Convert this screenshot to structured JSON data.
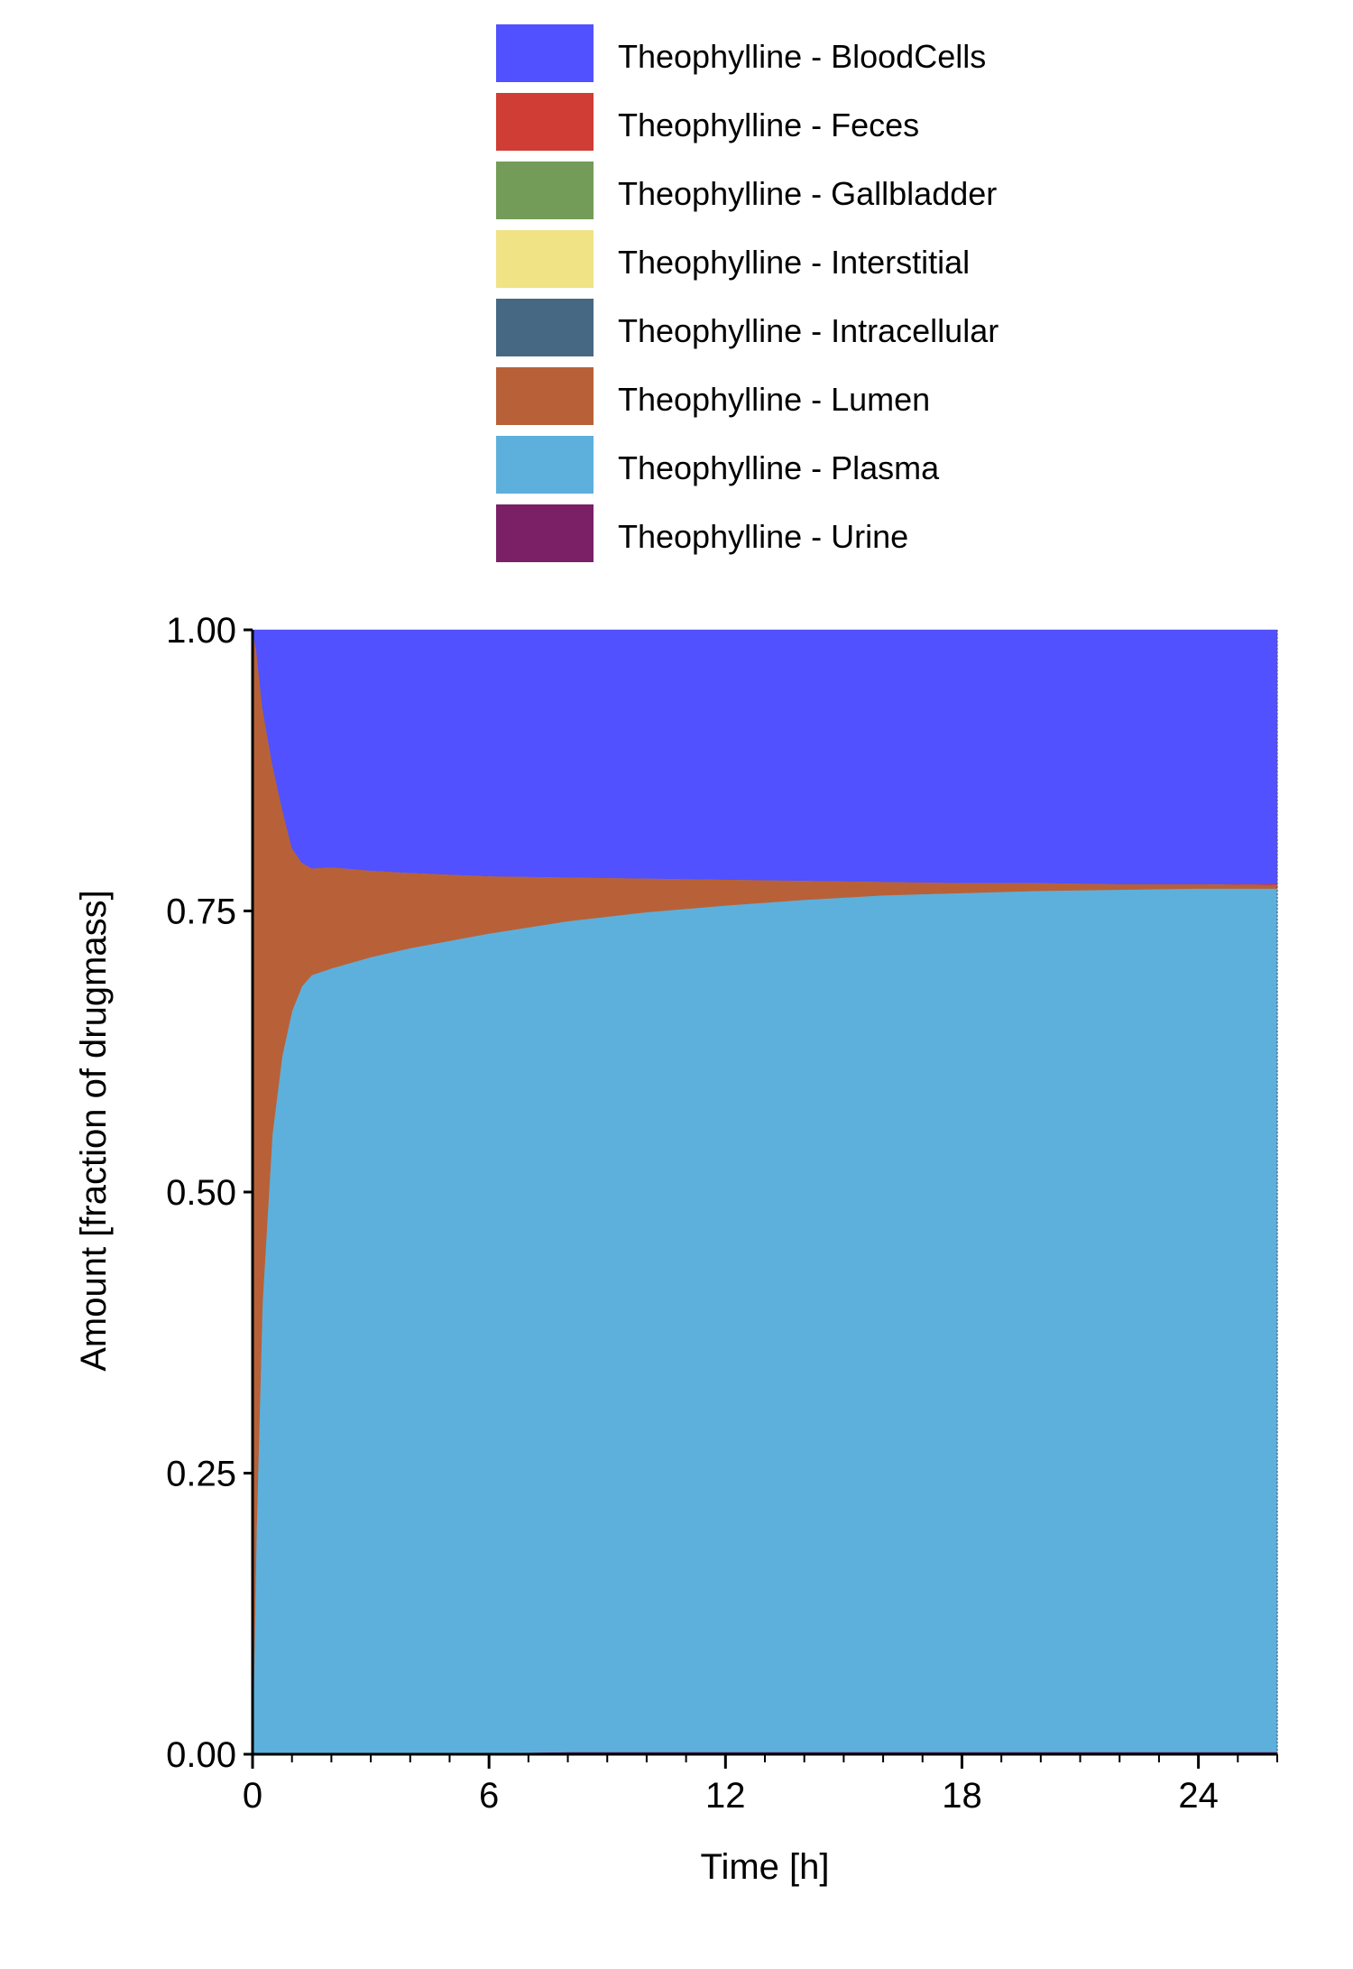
{
  "chart_data": {
    "type": "area",
    "stacked": true,
    "normalized": true,
    "xlabel": "Time [h]",
    "ylabel": "Amount [fraction of drugmass]",
    "xlim": [
      0,
      26
    ],
    "ylim": [
      0,
      1
    ],
    "xticks": [
      0,
      6,
      12,
      18,
      24
    ],
    "xtick_labels": [
      "0",
      "6",
      "12",
      "18",
      "24"
    ],
    "x_minor_step": 1,
    "yticks": [
      0,
      0.25,
      0.5,
      0.75,
      1.0
    ],
    "ytick_labels": [
      "0.00",
      "0.25",
      "0.50",
      "0.75",
      "1.00"
    ],
    "grid": false,
    "legend_position": "top",
    "x": [
      0,
      0.1,
      0.25,
      0.5,
      0.75,
      1,
      1.25,
      1.5,
      2,
      3,
      4,
      6,
      8,
      10,
      12,
      14,
      16,
      18,
      20,
      22,
      24,
      26
    ],
    "series": [
      {
        "name": "Theophylline - Urine",
        "color": "#7B2066",
        "values": [
          0,
          0.001,
          0.001,
          0.001,
          0.001,
          0.001,
          0.001,
          0.001,
          0.001,
          0.001,
          0.001,
          0.001,
          0.002,
          0.002,
          0.002,
          0.002,
          0.002,
          0.002,
          0.002,
          0.002,
          0.002,
          0.002
        ]
      },
      {
        "name": "Theophylline - Plasma",
        "color": "#5DB0DC",
        "values": [
          0,
          0.2,
          0.4,
          0.55,
          0.62,
          0.66,
          0.682,
          0.692,
          0.698,
          0.708,
          0.716,
          0.729,
          0.739,
          0.747,
          0.753,
          0.758,
          0.762,
          0.764,
          0.766,
          0.767,
          0.768,
          0.768
        ]
      },
      {
        "name": "Theophylline - Lumen",
        "color": "#B86138",
        "values": [
          1.0,
          0.78,
          0.53,
          0.33,
          0.22,
          0.145,
          0.11,
          0.095,
          0.09,
          0.077,
          0.067,
          0.051,
          0.039,
          0.03,
          0.023,
          0.017,
          0.012,
          0.009,
          0.007,
          0.005,
          0.004,
          0.003
        ]
      },
      {
        "name": "Theophylline - Intracellular",
        "color": "#466883",
        "values": [
          0,
          0,
          0,
          0,
          0,
          0,
          0,
          0,
          0,
          0,
          0,
          0,
          0,
          0,
          0,
          0,
          0,
          0,
          0,
          0,
          0,
          0
        ]
      },
      {
        "name": "Theophylline - Interstitial",
        "color": "#F0E386",
        "values": [
          0,
          0,
          0,
          0,
          0,
          0,
          0,
          0,
          0,
          0,
          0,
          0,
          0,
          0,
          0,
          0,
          0,
          0,
          0,
          0,
          0,
          0
        ]
      },
      {
        "name": "Theophylline - Gallbladder",
        "color": "#739C58",
        "values": [
          0,
          0,
          0,
          0,
          0,
          0,
          0,
          0,
          0,
          0,
          0,
          0,
          0,
          0,
          0,
          0,
          0,
          0,
          0,
          0,
          0,
          0
        ]
      },
      {
        "name": "Theophylline - Feces",
        "color": "#CF3D34",
        "values": [
          0,
          0,
          0,
          0,
          0,
          0,
          0,
          0,
          0,
          0,
          0,
          0,
          0,
          0,
          0,
          0,
          0,
          0,
          0,
          0,
          0,
          0.001
        ]
      },
      {
        "name": "Theophylline - BloodCells",
        "color": "#5151FF",
        "values": [
          0,
          0.019,
          0.069,
          0.119,
          0.159,
          0.194,
          0.207,
          0.212,
          0.211,
          0.214,
          0.216,
          0.219,
          0.22,
          0.221,
          0.222,
          0.223,
          0.224,
          0.225,
          0.225,
          0.226,
          0.226,
          0.226
        ]
      }
    ],
    "legend": [
      {
        "label": "Theophylline - BloodCells",
        "color": "#5151FF"
      },
      {
        "label": "Theophylline - Feces",
        "color": "#CF3D34"
      },
      {
        "label": "Theophylline - Gallbladder",
        "color": "#739C58"
      },
      {
        "label": "Theophylline - Interstitial",
        "color": "#F0E386"
      },
      {
        "label": "Theophylline - Intracellular",
        "color": "#466883"
      },
      {
        "label": "Theophylline - Lumen",
        "color": "#B86138"
      },
      {
        "label": "Theophylline - Plasma",
        "color": "#5DB0DC"
      },
      {
        "label": "Theophylline - Urine",
        "color": "#7B2066"
      }
    ]
  }
}
